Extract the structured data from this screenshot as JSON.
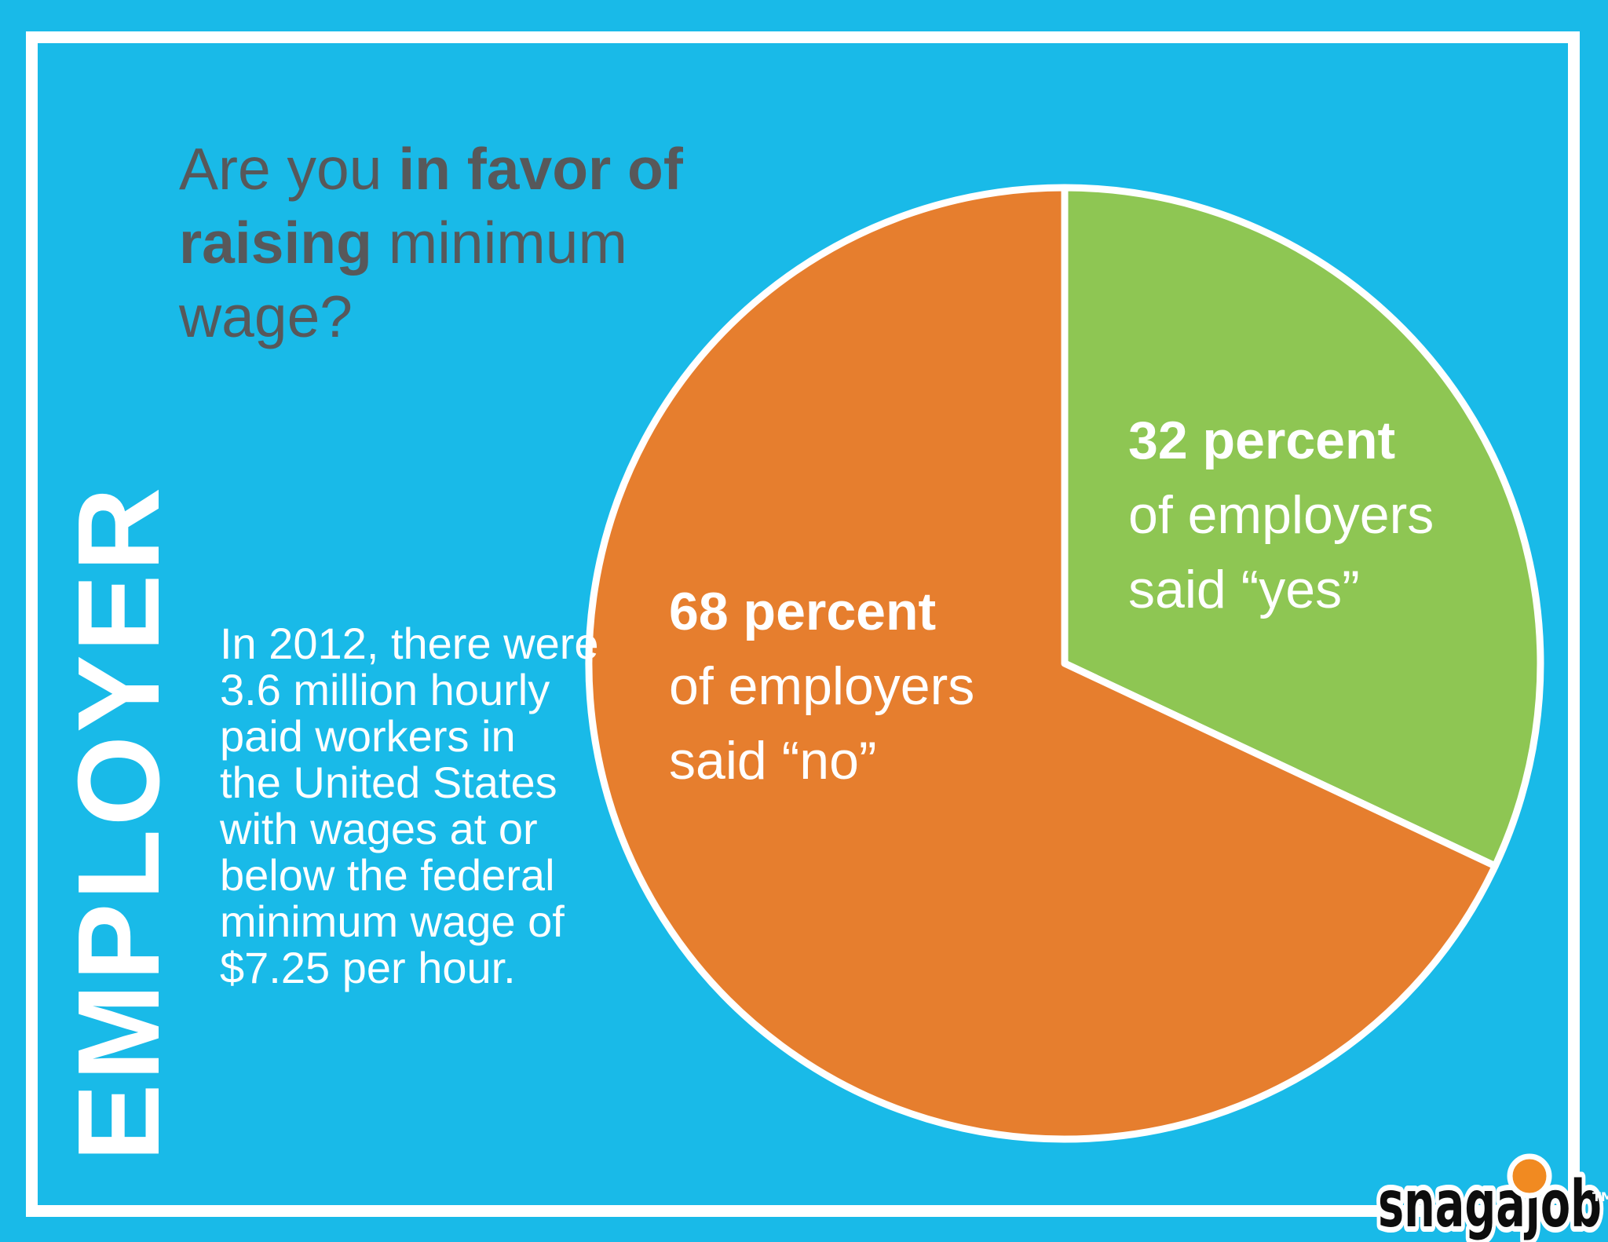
{
  "sidebar_label": "EMPLOYER",
  "title": {
    "line1_normal": "Are you ",
    "line1_bold": "in favor of",
    "line2_bold": "raising",
    "line2_normal": " minimum",
    "line3_normal": "wage?"
  },
  "stat_paragraph": "In 2012, there were\n3.6 million hourly\npaid workers in\nthe United States\nwith wages at or\nbelow the federal\nminimum wage of\n$7.25 per hour.",
  "chart_data": {
    "type": "pie",
    "title": "Are you in favor of raising minimum wage?",
    "start_angle_deg": 0,
    "direction": "clockwise",
    "stroke_color": "#FFFFFF",
    "legend_position": "inside-slices",
    "slices": [
      {
        "label": "yes",
        "value": 32,
        "color": "#8EC653",
        "annotation": [
          "32 percent",
          "of employers",
          "said “yes”"
        ]
      },
      {
        "label": "no",
        "value": 68,
        "color": "#E67E2E",
        "annotation": [
          "68 percent",
          "of employers",
          "said “no”"
        ]
      }
    ]
  },
  "logo": {
    "text": "snagajob",
    "tm": "TM",
    "dot_color": "#F18A21",
    "text_color": "#0D0D0D"
  },
  "colors": {
    "background": "#19BAE8",
    "frame": "#FFFFFF",
    "title_text": "#57585A",
    "body_text": "#FFFFFF",
    "pie_yes": "#8EC653",
    "pie_no": "#E67E2E",
    "pie_stroke": "#FFFFFF"
  }
}
